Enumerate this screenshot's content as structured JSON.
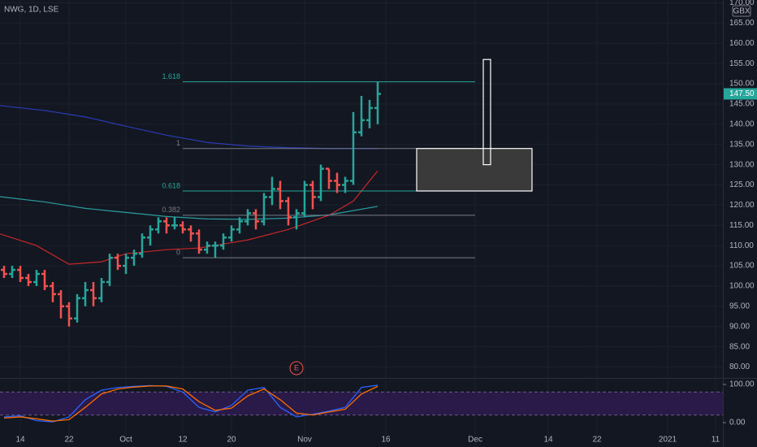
{
  "chart_data": {
    "type": "ohlc",
    "title": "NWG, 1D, LSE",
    "currency": "GBX",
    "up_color": "#26a69a",
    "down_color": "#ef5350",
    "x": [
      0,
      1,
      2,
      3,
      4,
      5,
      6,
      7,
      8,
      9,
      10,
      11,
      12,
      13,
      14,
      15,
      16,
      17,
      18,
      19,
      20,
      21,
      22,
      23,
      24,
      25,
      26,
      27,
      28,
      29,
      30,
      31,
      32,
      33,
      34,
      35,
      36,
      37,
      38,
      39,
      40,
      41,
      42,
      43,
      44,
      45,
      46
    ],
    "open": [
      104,
      103,
      104,
      102,
      101,
      103,
      100,
      98,
      95,
      92,
      97,
      99,
      97,
      101,
      107,
      105,
      107,
      108,
      112,
      114,
      116,
      115,
      115,
      114,
      113,
      109,
      110,
      110,
      112,
      114,
      116,
      118,
      116,
      122,
      124,
      121,
      117,
      118,
      125,
      122,
      129,
      126,
      125,
      126,
      138,
      141,
      144
    ],
    "high": [
      105,
      105,
      105,
      103,
      104,
      104,
      101,
      99,
      96,
      98,
      101,
      101,
      102,
      108,
      108,
      108,
      109,
      113,
      115,
      117,
      117,
      117,
      116,
      115,
      114,
      111,
      111,
      113,
      115,
      117,
      119,
      119,
      123,
      127,
      126,
      122,
      119,
      126,
      126,
      130,
      129,
      128,
      127,
      143,
      147,
      146,
      150.5
    ],
    "low": [
      102,
      102,
      101,
      100,
      100,
      99,
      96,
      92,
      90,
      91,
      95,
      95,
      96,
      100,
      104,
      103,
      105,
      107,
      110,
      113,
      113,
      114,
      113,
      111,
      108,
      108,
      107,
      109,
      111,
      113,
      115,
      114,
      115,
      120,
      119,
      115,
      114,
      117,
      119,
      121,
      124,
      123,
      123,
      125,
      137,
      139,
      140
    ],
    "close": [
      103,
      104,
      102,
      101,
      103,
      100,
      98,
      95,
      92,
      97,
      99,
      97,
      101,
      107,
      105,
      107,
      108,
      112,
      114,
      116,
      115,
      115,
      114,
      113,
      109,
      110,
      110,
      112,
      114,
      116,
      118,
      116,
      122,
      124,
      121,
      117,
      118,
      125,
      122,
      129,
      126,
      125,
      126,
      138,
      141,
      144,
      147.5
    ],
    "xlim": [
      -0.5,
      88.5
    ],
    "xticks": [
      {
        "value": 2,
        "label": "14"
      },
      {
        "value": 8,
        "label": "22"
      },
      {
        "value": 15,
        "label": "Oct"
      },
      {
        "value": 22,
        "label": "12"
      },
      {
        "value": 28,
        "label": "20"
      },
      {
        "value": 37,
        "label": "Nov"
      },
      {
        "value": 47,
        "label": "16"
      },
      {
        "value": 58,
        "label": "Dec"
      },
      {
        "value": 67,
        "label": "14"
      },
      {
        "value": 73,
        "label": "22"
      },
      {
        "value": 81.7,
        "label": "2021"
      },
      {
        "value": 87.6,
        "label": "11"
      }
    ],
    "ylim": [
      77.3,
      170.7
    ],
    "yticks": [
      {
        "value": 80,
        "label": "80.00"
      },
      {
        "value": 85,
        "label": "85.00"
      },
      {
        "value": 90,
        "label": "90.00"
      },
      {
        "value": 95,
        "label": "95.00"
      },
      {
        "value": 100,
        "label": "100.00"
      },
      {
        "value": 105,
        "label": "105.00"
      },
      {
        "value": 110,
        "label": "110.00"
      },
      {
        "value": 115,
        "label": "115.00"
      },
      {
        "value": 120,
        "label": "120.00"
      },
      {
        "value": 125,
        "label": "125.00"
      },
      {
        "value": 130,
        "label": "130.00"
      },
      {
        "value": 135,
        "label": "135.00"
      },
      {
        "value": 140,
        "label": "140.00"
      },
      {
        "value": 145,
        "label": "145.00"
      },
      {
        "value": 150,
        "label": "150.00"
      },
      {
        "value": 155,
        "label": "155.00"
      },
      {
        "value": 160,
        "label": "160.00"
      },
      {
        "value": 165,
        "label": "165.00"
      },
      {
        "value": 170,
        "label": "170.00"
      }
    ],
    "last_price": {
      "value": 147.5,
      "label": "147.50"
    },
    "moving_averages": [
      {
        "color": "#2a3bb5",
        "x": [
          -0.5,
          5,
          10,
          15,
          20,
          25,
          30,
          35,
          40,
          46
        ],
        "values": [
          144.6,
          143.4,
          141.8,
          139.5,
          137.3,
          135.5,
          134.6,
          134.2,
          134.0,
          134.0
        ]
      },
      {
        "color": "#2a9d9f",
        "x": [
          -0.5,
          5,
          10,
          15,
          20,
          25,
          30,
          35,
          40,
          46
        ],
        "values": [
          122.1,
          120.8,
          119.2,
          118.2,
          117.2,
          116.6,
          116.5,
          116.8,
          117.6,
          119.7
        ]
      },
      {
        "color": "#c62828",
        "x": [
          -0.5,
          4,
          8,
          12,
          15,
          20,
          24,
          30,
          35,
          40,
          43,
          46
        ],
        "values": [
          112.9,
          110,
          105.4,
          106,
          108,
          109,
          109.4,
          111.4,
          114,
          117.5,
          121,
          128.5
        ]
      }
    ],
    "fib_levels": [
      {
        "ratio": "1.618",
        "price": 150.5,
        "color": "#26a69a"
      },
      {
        "ratio": "1",
        "price": 134,
        "color": "#787b86"
      },
      {
        "ratio": "0.618",
        "price": 123.5,
        "color": "#26a69a"
      },
      {
        "ratio": "0.382",
        "price": 117.5,
        "color": "#787b86"
      },
      {
        "ratio": "0",
        "price": 107,
        "color": "#787b86"
      }
    ],
    "fib_x": [
      22,
      58
    ],
    "shapes": [
      {
        "x": [
          50.8,
          65
        ],
        "price": [
          134,
          123.5
        ],
        "fill": "#3a3a3a",
        "stroke": "#ffffff"
      },
      {
        "x": [
          59,
          59.9
        ],
        "price": [
          156,
          130
        ],
        "fill": "none",
        "stroke": "#ffffff"
      }
    ],
    "event": {
      "x": 36,
      "label": "E"
    },
    "oscillator": {
      "ylim": [
        -59.6,
        114.9
      ],
      "yticks": [
        {
          "value": 100,
          "label": "100.00"
        },
        {
          "value": 0,
          "label": "0.00"
        }
      ],
      "band": [
        20,
        80
      ],
      "x": [
        0,
        2,
        4,
        6,
        8,
        10,
        12,
        14,
        16,
        18,
        20,
        22,
        24,
        26,
        28,
        30,
        32,
        34,
        36,
        38,
        40,
        42,
        44,
        46
      ],
      "series": [
        {
          "color": "#2962ff",
          "values": [
            15,
            18,
            5,
            2,
            15,
            60,
            85,
            92,
            95,
            97,
            95,
            80,
            40,
            28,
            45,
            85,
            92,
            40,
            15,
            22,
            30,
            40,
            92,
            98
          ]
        },
        {
          "color": "#ff6d00",
          "values": [
            12,
            15,
            10,
            4,
            8,
            40,
            75,
            88,
            93,
            96,
            96,
            88,
            55,
            32,
            38,
            70,
            88,
            60,
            25,
            20,
            28,
            35,
            75,
            95
          ]
        }
      ]
    }
  }
}
